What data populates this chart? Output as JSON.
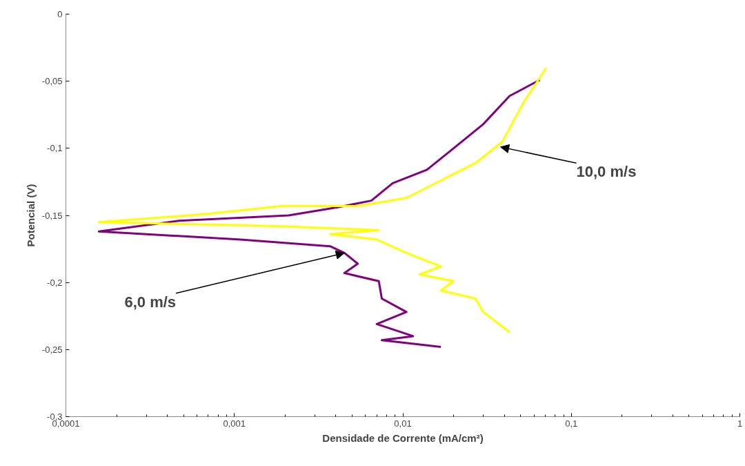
{
  "chart_data": {
    "type": "line",
    "xlabel": "Densidade de Corrente (mA/cm²)",
    "ylabel": "Potencial (V)",
    "log": "x",
    "marker": "none",
    "line_style": "solid",
    "xlim": [
      0.0001,
      1
    ],
    "xticks": [
      {
        "value": 0.0001,
        "label": "0,0001"
      },
      {
        "value": 0.001,
        "label": "0,001"
      },
      {
        "value": 0.01,
        "label": "0,01"
      },
      {
        "value": 0.1,
        "label": "0,1"
      },
      1
    ],
    "ylim": [
      -0.3,
      0
    ],
    "yticks": [
      {
        "value": -0.3,
        "label": "-0,3"
      },
      {
        "value": -0.25,
        "label": "-0,25"
      },
      {
        "value": -0.2,
        "label": "-0,2"
      },
      {
        "value": -0.15,
        "label": "-0,15"
      },
      {
        "value": -0.1,
        "label": "-0,1"
      },
      {
        "value": -0.05,
        "label": "-0,05"
      },
      0
    ],
    "series": [
      {
        "color": "#800080",
        "x": [
          0.065,
          0.043,
          0.03,
          0.02,
          0.0139,
          0.0087,
          0.0065,
          0.0041,
          0.0021,
          0.00047,
          0.000157,
          0.00109,
          0.0037,
          0.0045,
          0.0054,
          0.0045,
          0.0072,
          0.0075,
          0.0105,
          0.007,
          0.0115,
          0.0075,
          0.0168
        ],
        "values": [
          -0.049,
          -0.061,
          -0.082,
          -0.1,
          -0.116,
          -0.126,
          -0.139,
          -0.144,
          -0.15,
          -0.154,
          -0.162,
          -0.168,
          -0.173,
          -0.178,
          -0.186,
          -0.193,
          -0.199,
          -0.212,
          -0.222,
          -0.231,
          -0.24,
          -0.243,
          -0.248
        ]
      },
      {
        "color": "#ffff00",
        "x": [
          0.071,
          0.052,
          0.039,
          0.027,
          0.0168,
          0.0105,
          0.0054,
          0.0019,
          0.00068,
          0.000157,
          0.00175,
          0.0072,
          0.0037,
          0.007,
          0.0105,
          0.0168,
          0.0126,
          0.02,
          0.0168,
          0.027,
          0.03,
          0.039,
          0.043
        ],
        "values": [
          -0.04,
          -0.066,
          -0.095,
          -0.111,
          -0.124,
          -0.137,
          -0.143,
          -0.143,
          -0.149,
          -0.155,
          -0.158,
          -0.161,
          -0.164,
          -0.168,
          -0.178,
          -0.188,
          -0.194,
          -0.199,
          -0.206,
          -0.212,
          -0.222,
          -0.233,
          -0.237
        ]
      }
    ],
    "annotations": [
      {
        "text": "10,0 m/s",
        "x": 0.038,
        "y": -0.099
      },
      {
        "text": "6,0 m/s",
        "x": 0.0045,
        "y": -0.178
      }
    ]
  }
}
